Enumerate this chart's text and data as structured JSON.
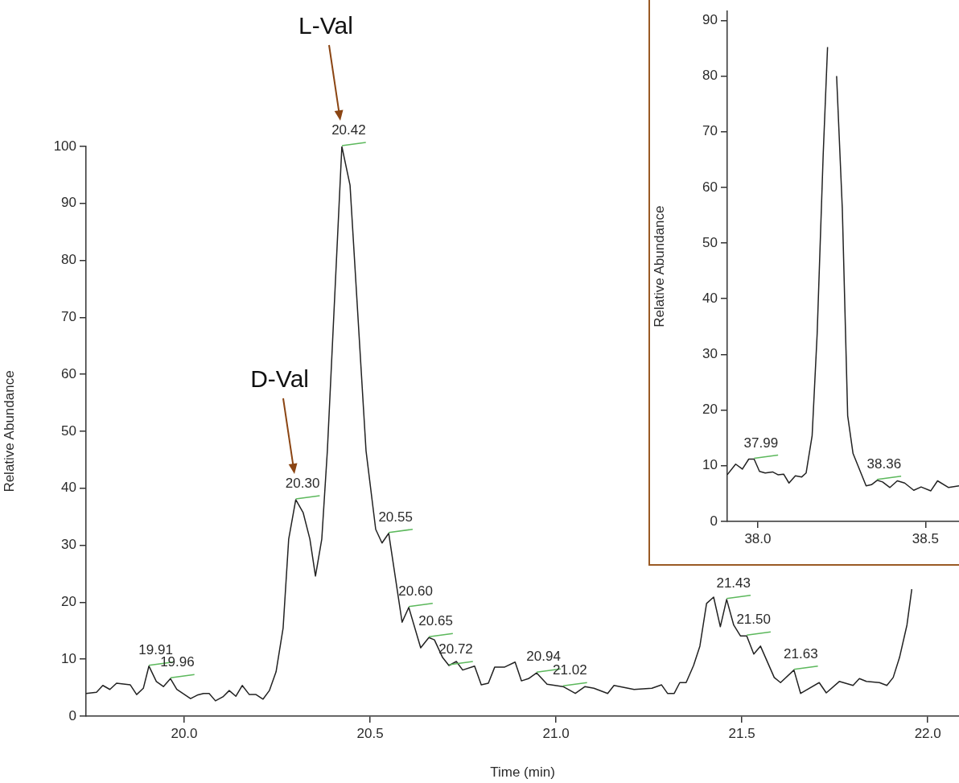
{
  "chart_data": [
    {
      "type": "line",
      "xlabel": "Time (min)",
      "ylabel": "Relative Abundance",
      "color": "#222222",
      "marker": "none",
      "grid": false,
      "xlim": [
        19.736,
        22.084
      ],
      "ylim": [
        0,
        100
      ],
      "xticks": [
        {
          "value": 20,
          "label": "20.0"
        },
        {
          "value": 20.5,
          "label": "20.5"
        },
        {
          "value": 21,
          "label": "21.0"
        },
        {
          "value": 21.5,
          "label": "21.5"
        },
        {
          "value": 22,
          "label": "22.0"
        }
      ],
      "yticks": [
        0,
        10,
        20,
        30,
        40,
        50,
        60,
        70,
        80,
        90,
        100
      ],
      "x": [
        19.736,
        19.764,
        19.781,
        19.8,
        19.818,
        19.855,
        19.872,
        19.89,
        19.905,
        19.925,
        19.944,
        19.963,
        19.98,
        20.017,
        20.035,
        20.052,
        20.067,
        20.084,
        20.104,
        20.121,
        20.139,
        20.156,
        20.175,
        20.193,
        20.212,
        20.229,
        20.247,
        20.266,
        20.281,
        20.3,
        20.32,
        20.338,
        20.353,
        20.37,
        20.385,
        20.424,
        20.446,
        20.489,
        20.515,
        20.532,
        20.55,
        20.586,
        20.604,
        20.636,
        20.658,
        20.673,
        20.695,
        20.712,
        20.732,
        20.749,
        20.781,
        20.799,
        20.818,
        20.835,
        20.861,
        20.89,
        20.907,
        20.926,
        20.948,
        20.976,
        21.019,
        21.052,
        21.078,
        21.102,
        21.139,
        21.156,
        21.21,
        21.258,
        21.284,
        21.3,
        21.318,
        21.333,
        21.35,
        21.37,
        21.387,
        21.405,
        21.424,
        21.442,
        21.459,
        21.478,
        21.496,
        21.513,
        21.532,
        21.55,
        21.587,
        21.604,
        21.64,
        21.658,
        21.708,
        21.727,
        21.762,
        21.799,
        21.816,
        21.835,
        21.87,
        21.89,
        21.907,
        21.924,
        21.944,
        21.957
      ],
      "values": [
        4.0,
        4.2,
        5.4,
        4.7,
        5.8,
        5.5,
        3.8,
        4.9,
        8.8,
        6.1,
        5.2,
        6.6,
        4.7,
        3.1,
        3.7,
        4.0,
        4.0,
        2.7,
        3.4,
        4.5,
        3.5,
        5.4,
        3.8,
        3.8,
        3.0,
        4.5,
        7.8,
        15.5,
        31.1,
        38.0,
        35.7,
        31.1,
        24.6,
        31.1,
        46.6,
        100,
        93.2,
        46.6,
        32.8,
        30.4,
        32.1,
        16.5,
        19.1,
        12.0,
        13.8,
        13.4,
        10.3,
        8.9,
        9.6,
        8.1,
        8.8,
        5.5,
        5.8,
        8.6,
        8.6,
        9.5,
        6.2,
        6.6,
        7.6,
        5.6,
        5.2,
        4.0,
        5.2,
        4.9,
        4.0,
        5.4,
        4.7,
        4.9,
        5.5,
        4.0,
        4.0,
        5.9,
        5.9,
        8.9,
        12.3,
        19.8,
        20.9,
        15.7,
        20.5,
        16.0,
        14.1,
        14.1,
        10.9,
        12.3,
        6.8,
        5.9,
        8.1,
        4.0,
        5.9,
        4.1,
        6.1,
        5.4,
        6.6,
        6.1,
        5.9,
        5.4,
        6.8,
        10.3,
        16.0,
        22.3
      ],
      "annotations": [
        {
          "text": "19.91",
          "x": 19.905,
          "y": 8.8
        },
        {
          "text": "19.96",
          "x": 19.963,
          "y": 6.6
        },
        {
          "text": "20.30",
          "x": 20.3,
          "y": 38.0
        },
        {
          "text": "20.42",
          "x": 20.424,
          "y": 100
        },
        {
          "text": "20.55",
          "x": 20.55,
          "y": 32.1
        },
        {
          "text": "20.60",
          "x": 20.604,
          "y": 19.1
        },
        {
          "text": "20.65",
          "x": 20.658,
          "y": 13.8
        },
        {
          "text": "20.72",
          "x": 20.712,
          "y": 8.9
        },
        {
          "text": "20.94",
          "x": 20.948,
          "y": 7.6
        },
        {
          "text": "21.02",
          "x": 21.019,
          "y": 5.2
        },
        {
          "text": "21.43",
          "x": 21.459,
          "y": 20.5
        },
        {
          "text": "21.50",
          "x": 21.513,
          "y": 14.1
        },
        {
          "text": "21.63",
          "x": 21.64,
          "y": 8.1
        },
        "L-Val",
        "D-Val"
      ]
    },
    {
      "type": "line",
      "ylabel": "Relative Abundance",
      "color": "#222222",
      "marker": "none",
      "grid": false,
      "xlim": [
        37.909,
        38.6
      ],
      "ylim": [
        0,
        91.6
      ],
      "xticks": [
        {
          "value": 38,
          "label": "38.0"
        },
        {
          "value": 38.5,
          "label": "38.5"
        }
      ],
      "yticks": [
        0,
        10,
        20,
        30,
        40,
        50,
        60,
        70,
        80,
        90
      ],
      "x": [
        37.909,
        37.934,
        37.954,
        37.973,
        37.989,
        38.005,
        38.022,
        38.044,
        38.06,
        38.077,
        38.093,
        38.112,
        38.131,
        38.144,
        38.162,
        38.177,
        38.195,
        38.208,
        38.216,
        38.224,
        38.235,
        38.252,
        38.268,
        38.284,
        38.323,
        38.339,
        38.356,
        38.372,
        38.394,
        38.416,
        38.438,
        38.465,
        38.487,
        38.516,
        38.536,
        38.569,
        38.6
      ],
      "values": [
        8.4,
        10.3,
        9.4,
        11.2,
        11.2,
        9.0,
        8.7,
        8.9,
        8.4,
        8.5,
        6.9,
        8.2,
        8.0,
        8.7,
        15.4,
        33.7,
        65.9,
        85.2,
        null,
        null,
        80,
        56.2,
        19.0,
        12.2,
        6.4,
        6.6,
        7.4,
        7.1,
        6.1,
        7.3,
        6.9,
        5.6,
        6.2,
        5.5,
        7.3,
        6.1,
        6.4
      ],
      "annotations": [
        {
          "text": "37.99",
          "x": 37.989,
          "y": 11.2
        },
        {
          "text": "38.36",
          "x": 38.356,
          "y": 7.4
        }
      ]
    }
  ]
}
